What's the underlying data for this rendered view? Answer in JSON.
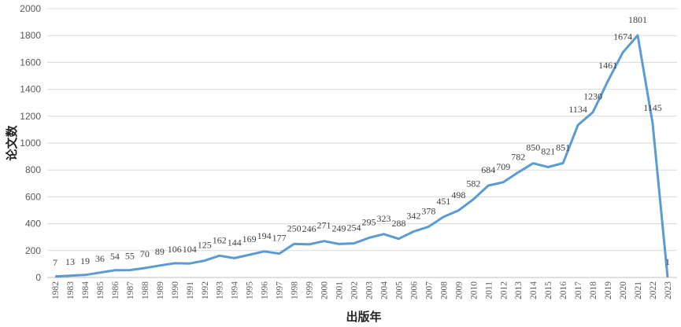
{
  "chart_data": {
    "type": "line",
    "title": "",
    "xlabel": "出版年",
    "ylabel": "论文数",
    "ylim": [
      0,
      2000
    ],
    "yticks": [
      0,
      200,
      400,
      600,
      800,
      1000,
      1200,
      1400,
      1600,
      1800,
      2000
    ],
    "grid": true,
    "color": "#5B9BD5",
    "x": [
      "1982",
      "1983",
      "1984",
      "1985",
      "1986",
      "1987",
      "1988",
      "1989",
      "1990",
      "1991",
      "1992",
      "1993",
      "1994",
      "1995",
      "1996",
      "1997",
      "1998",
      "1999",
      "2000",
      "2001",
      "2002",
      "2003",
      "2004",
      "2005",
      "2006",
      "2007",
      "2008",
      "2009",
      "2010",
      "2011",
      "2012",
      "2013",
      "2014",
      "2015",
      "2016",
      "2017",
      "2018",
      "2019",
      "2020",
      "2021",
      "2022",
      "2023"
    ],
    "series": [
      {
        "name": "论文数",
        "values": [
          7,
          13,
          19,
          36,
          54,
          55,
          70,
          89,
          106,
          104,
          125,
          162,
          144,
          169,
          194,
          177,
          250,
          246,
          271,
          249,
          254,
          295,
          323,
          288,
          342,
          378,
          451,
          498,
          582,
          684,
          709,
          782,
          850,
          821,
          851,
          1134,
          1230,
          1461,
          1674,
          1801,
          1145,
          1
        ]
      }
    ]
  }
}
